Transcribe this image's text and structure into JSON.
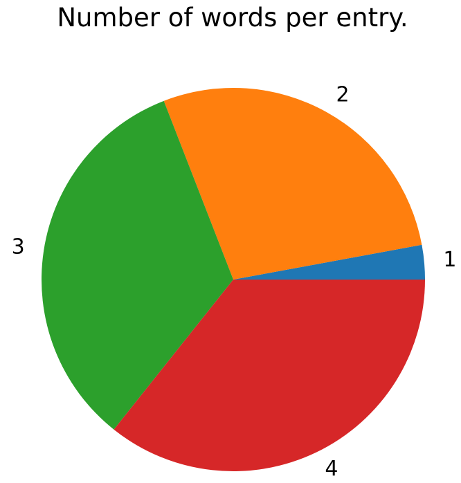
{
  "chart_data": {
    "type": "pie",
    "title": "Number of words per entry.",
    "categories": [
      "1",
      "2",
      "3",
      "4"
    ],
    "values": [
      2.9,
      28.0,
      33.4,
      35.7
    ],
    "colors": [
      "#1f77b4",
      "#ff7f0e",
      "#2ca02c",
      "#d62728"
    ],
    "start_angle_deg": 0,
    "direction": "counterclockwise",
    "legend": "none"
  }
}
